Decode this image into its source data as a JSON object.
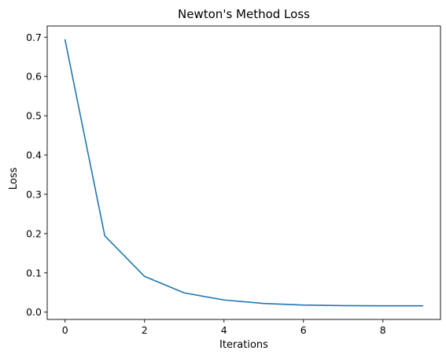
{
  "chart_data": {
    "type": "line",
    "title": "Newton's Method Loss",
    "xlabel": "Iterations",
    "ylabel": "Loss",
    "xlim": [
      -0.45,
      9.45
    ],
    "ylim": [
      -0.0186,
      0.7286
    ],
    "xticks": [
      0,
      2,
      4,
      6,
      8
    ],
    "xtick_labels": [
      "0",
      "2",
      "4",
      "6",
      "8"
    ],
    "yticks": [
      0.0,
      0.1,
      0.2,
      0.3,
      0.4,
      0.5,
      0.6,
      0.7
    ],
    "ytick_labels": [
      "0.0",
      "0.1",
      "0.2",
      "0.3",
      "0.4",
      "0.5",
      "0.6",
      "0.7"
    ],
    "grid": false,
    "series": [
      {
        "x": [
          0,
          1,
          2,
          3,
          4,
          5,
          6,
          7,
          8,
          9
        ],
        "values": [
          0.693,
          0.194,
          0.091,
          0.049,
          0.031,
          0.022,
          0.018,
          0.0165,
          0.016,
          0.016
        ],
        "color": "#1f77b4"
      }
    ]
  }
}
